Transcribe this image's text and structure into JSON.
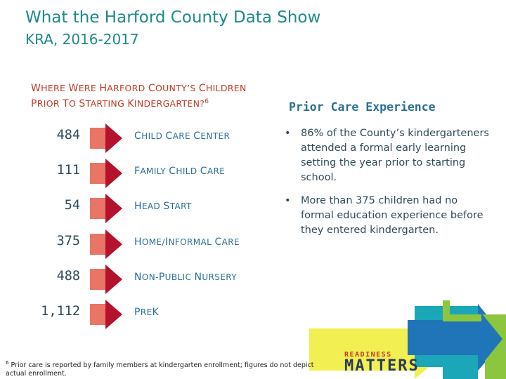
{
  "header": {
    "title": "What the Harford County Data Show",
    "subtitle": "KRA, 2016-2017"
  },
  "question": {
    "line1_parts": [
      "W",
      "HERE ",
      "W",
      "ERE ",
      "H",
      "ARFORD ",
      "C",
      "OUNTY",
      "’",
      "S ",
      "C",
      "HILDREN"
    ],
    "text_line1": "WHERE WERE HARFORD COUNTY’S CHILDREN",
    "text_line2": "PRIOR TO STARTING KINDERGARTEN?",
    "footnote_ref": "6"
  },
  "care_rows": [
    {
      "count": "484",
      "label_first": "C",
      "label_rest": "HILD ",
      "label_first2": "C",
      "label_rest2": "ARE ",
      "label_first3": "C",
      "label_rest3": "ENTER"
    },
    {
      "count": "111",
      "label_first": "F",
      "label_rest": "AMILY ",
      "label_first2": "C",
      "label_rest2": "HILD ",
      "label_first3": "C",
      "label_rest3": "ARE"
    },
    {
      "count": "54",
      "label_first": "H",
      "label_rest": "EAD ",
      "label_first2": "S",
      "label_rest2": "TART",
      "label_first3": "",
      "label_rest3": ""
    },
    {
      "count": "375",
      "label_first": "H",
      "label_rest": "OME/",
      "label_first2": "I",
      "label_rest2": "NFORMAL ",
      "label_first3": "C",
      "label_rest3": "ARE"
    },
    {
      "count": "488",
      "label_first": "N",
      "label_rest": "ON-",
      "label_first2": "P",
      "label_rest2": "UBLIC ",
      "label_first3": "N",
      "label_rest3": "URSERY"
    },
    {
      "count": "1,112",
      "label_first": "P",
      "label_rest": "RE",
      "label_first2": "K",
      "label_rest2": "",
      "label_first3": "",
      "label_rest3": ""
    }
  ],
  "prior_care": {
    "heading": "Prior Care Experience",
    "bullets": [
      "86% of the County’s kindergarteners attended a formal early learning setting the year prior to starting school.",
      "More than 375 children had no formal education experience before they entered kindergarten."
    ],
    "bullet_symbol": "•"
  },
  "footnote": {
    "marker": "6",
    "text": " Prior care is reported by family members at kindergarten enrollment; figures do not depict actual enrollment."
  },
  "logo": {
    "top": "READINESS",
    "bottom": "MATTERS"
  },
  "colors": {
    "title": "#1d8a8a",
    "question": "#c0392b",
    "arrow_fill": "#e87566",
    "arrow_dark": "#b5122d",
    "label": "#2a6f97"
  }
}
